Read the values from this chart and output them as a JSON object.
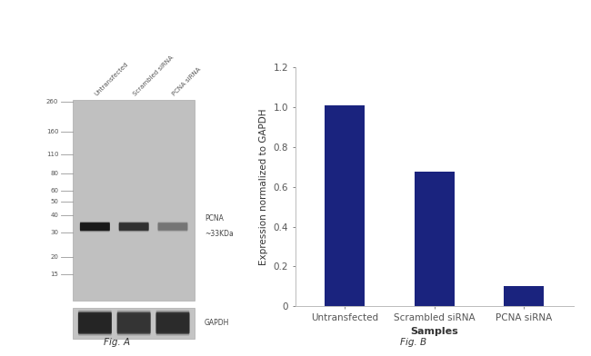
{
  "fig_width": 6.5,
  "fig_height": 3.92,
  "dpi": 100,
  "panel_a": {
    "gel_bg_color": "#c0c0c0",
    "gapdh_bg_color": "#c4c4c4",
    "mw_markers": [
      260,
      160,
      110,
      80,
      60,
      50,
      40,
      30,
      20,
      15
    ],
    "mw_only_bottom": [
      15
    ],
    "lane_labels": [
      "Untransfected",
      "Scrambled siRNA",
      "PCNA siRNA"
    ],
    "pcna_label": "PCNA",
    "pcna_kda_label": "~33KDa",
    "gapdh_label": "GAPDH",
    "fig_label": "Fig. A",
    "band_color": "#111111",
    "pcna_band_intensities": [
      0.9,
      0.7,
      0.3
    ],
    "gapdh_band_intensities": [
      0.8,
      0.68,
      0.75
    ],
    "pcna_mw": 33,
    "log_max_mw": 260,
    "log_min_mw": 10
  },
  "panel_b": {
    "categories": [
      "Untransfected",
      "Scrambled siRNA",
      "PCNA siRNA"
    ],
    "values": [
      1.01,
      0.675,
      0.1
    ],
    "bar_color": "#1a237e",
    "bar_width": 0.45,
    "ylim": [
      0,
      1.2
    ],
    "yticks": [
      0,
      0.2,
      0.4,
      0.6,
      0.8,
      1.0,
      1.2
    ],
    "xlabel": "Samples",
    "ylabel": "Expression normalized to GAPDH",
    "fig_label": "Fig. B",
    "xlabel_fontsize": 8,
    "ylabel_fontsize": 7.5,
    "tick_fontsize": 7.5,
    "label_color": "#333333"
  },
  "background_color": "#ffffff"
}
